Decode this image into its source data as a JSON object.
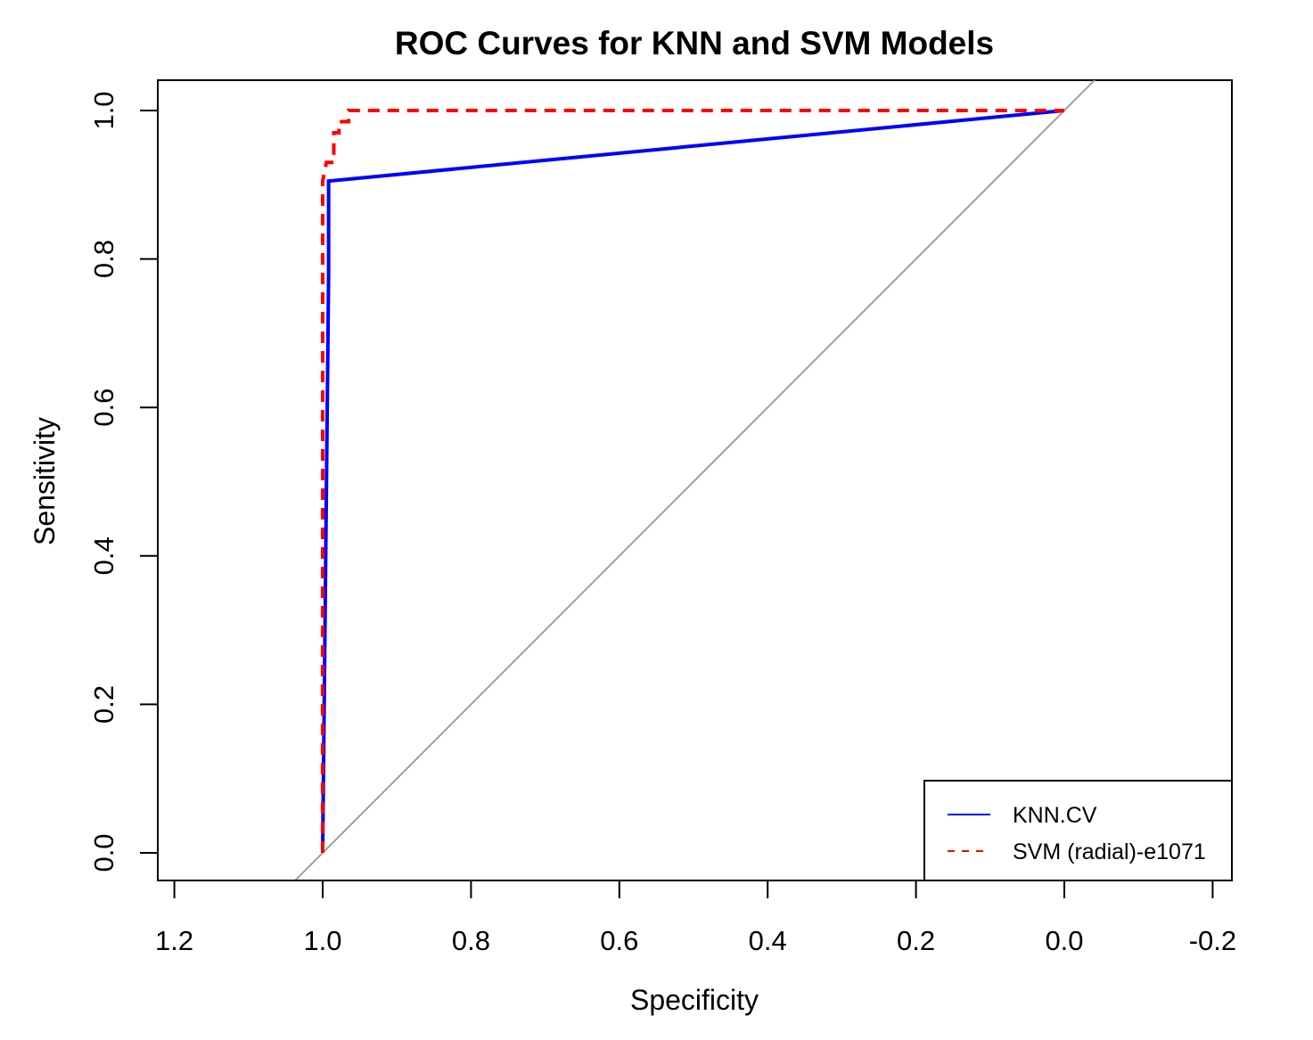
{
  "chart_data": {
    "type": "line",
    "title": "ROC Curves for KNN and SVM Models",
    "xlabel": "Specificity",
    "ylabel": "Sensitivity",
    "x_reversed": true,
    "xlim": [
      1.2,
      -0.2
    ],
    "ylim": [
      0.0,
      1.0
    ],
    "x_ticks": [
      1.2,
      1.0,
      0.8,
      0.6,
      0.4,
      0.2,
      0.0,
      -0.2
    ],
    "x_tick_labels": [
      "1.2",
      "1.0",
      "0.8",
      "0.6",
      "0.4",
      "0.2",
      "0.0",
      "-0.2"
    ],
    "y_ticks": [
      0.0,
      0.2,
      0.4,
      0.6,
      0.8,
      1.0
    ],
    "y_tick_labels": [
      "0.0",
      "0.2",
      "0.4",
      "0.6",
      "0.8",
      "1.0"
    ],
    "grid": false,
    "legend_position": "bottom-right",
    "reference_line": {
      "color": "#a0a0a0",
      "x": [
        1.0,
        0.0
      ],
      "y": [
        0.0,
        1.0
      ]
    },
    "series": [
      {
        "name": "KNN.CV",
        "color": "#0000ff",
        "dash": "solid",
        "x": [
          1.0,
          0.992,
          0.992,
          0.0
        ],
        "y": [
          0.0,
          0.78,
          0.905,
          1.0
        ]
      },
      {
        "name": "SVM (radial)-e1071",
        "color": "#ff0000",
        "dash": "dashed",
        "x": [
          1.0,
          1.0,
          0.995,
          0.985,
          0.985,
          0.978,
          0.978,
          0.965,
          0.965,
          0.0
        ],
        "y": [
          0.0,
          0.905,
          0.93,
          0.93,
          0.97,
          0.97,
          0.985,
          0.985,
          1.0,
          1.0
        ]
      }
    ]
  }
}
